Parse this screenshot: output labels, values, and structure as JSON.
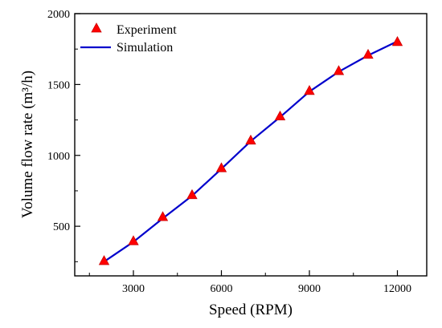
{
  "chart_data": {
    "type": "line",
    "title": "",
    "xlabel": "Speed (RPM)",
    "ylabel": "Volume flow rate (m³/h)",
    "xlim": [
      1000,
      13000
    ],
    "ylim": [
      150,
      2000
    ],
    "x_ticks": [
      3000,
      6000,
      9000,
      12000
    ],
    "x_tick_labels": [
      "3000",
      "6000",
      "9000",
      "12000"
    ],
    "y_ticks": [
      500,
      1000,
      1500,
      2000
    ],
    "y_tick_labels": [
      "500",
      "1000",
      "1500",
      "2000"
    ],
    "legend_position": "top-left",
    "grid": false,
    "series": [
      {
        "name": "Experiment",
        "kind": "scatter",
        "marker": "triangle",
        "color": "#ff0000",
        "x": [
          2000,
          3000,
          4000,
          5000,
          6000,
          7000,
          8000,
          9000,
          10000,
          11000,
          12000
        ],
        "y": [
          255,
          395,
          565,
          720,
          910,
          1105,
          1275,
          1455,
          1595,
          1710,
          1800
        ]
      },
      {
        "name": "Simulation",
        "kind": "line",
        "color": "#0000cc",
        "x": [
          2000,
          3000,
          4000,
          5000,
          6000,
          7000,
          8000,
          9000,
          10000,
          11000,
          12000
        ],
        "y": [
          250,
          390,
          555,
          715,
          905,
          1100,
          1270,
          1450,
          1590,
          1705,
          1805
        ]
      }
    ]
  }
}
